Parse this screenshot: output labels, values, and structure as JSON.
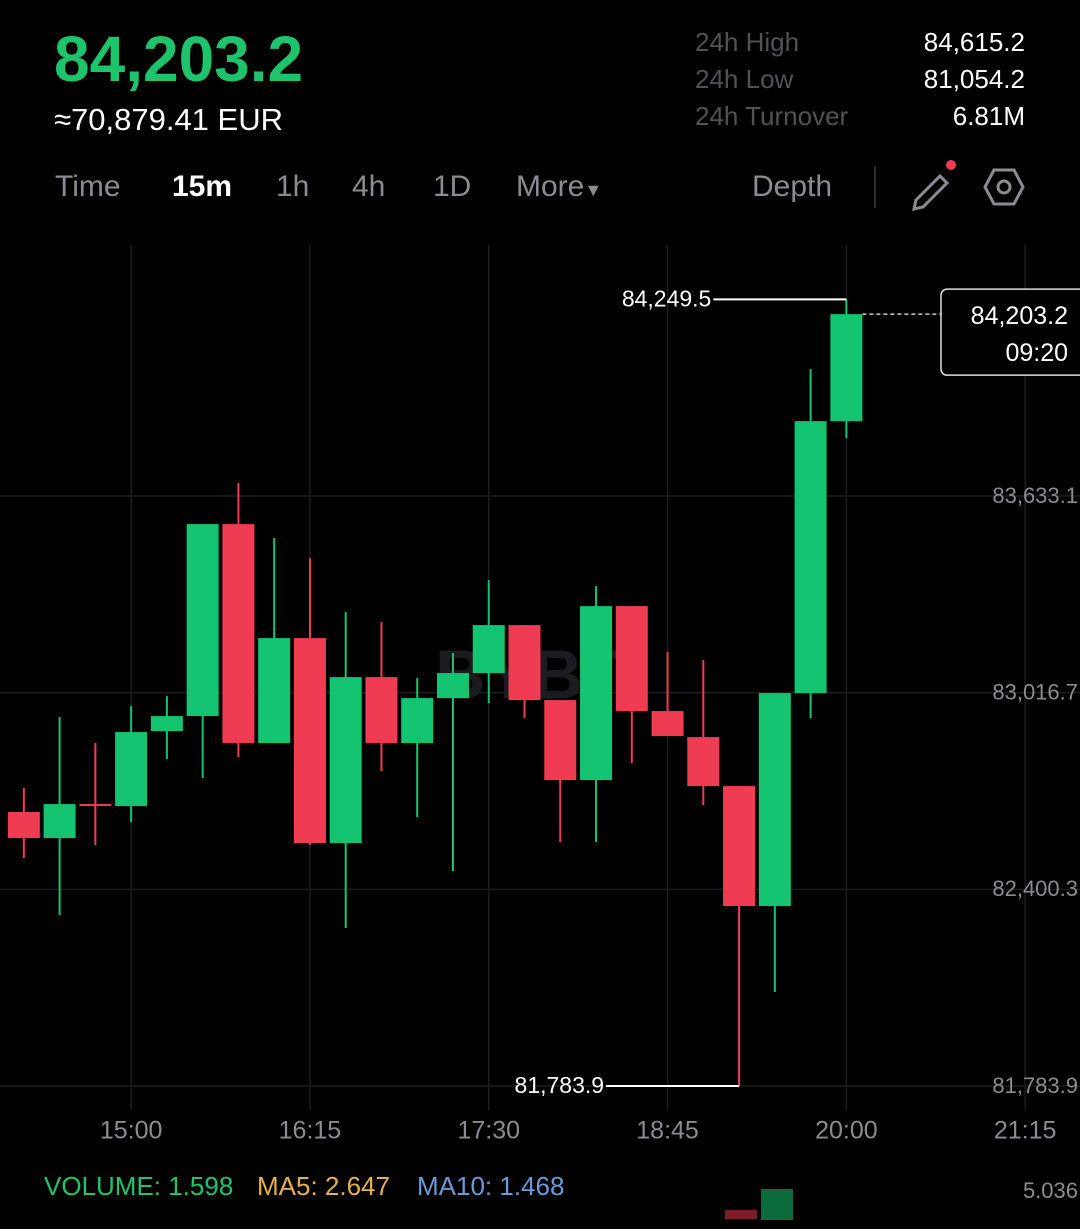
{
  "header": {
    "price": "84,203.2",
    "fiat": "≈70,879.41 EUR",
    "stats": [
      {
        "label": "24h High",
        "value": "84,615.2"
      },
      {
        "label": "24h Low",
        "value": "81,054.2"
      },
      {
        "label": "24h Turnover",
        "value": "6.81M"
      }
    ]
  },
  "tabs": [
    "Time",
    "15m",
    "1h",
    "4h",
    "1D",
    "More"
  ],
  "active_tab": "15m",
  "depth": "Depth",
  "chart_data": {
    "type": "candlestick",
    "watermark": "BYBIT",
    "up_color": "#14c470",
    "down_color": "#f03c52",
    "grid": true,
    "x": [
      855,
      870,
      885,
      900,
      915,
      930,
      945,
      960,
      975,
      990,
      1005,
      1020,
      1035,
      1050,
      1065,
      1080,
      1095,
      1110,
      1125,
      1140,
      1155,
      1170,
      1185,
      1200
    ],
    "open": [
      82642.6,
      82561.1,
      82667.6,
      82661.4,
      82896.4,
      82943.4,
      83545.1,
      82858.8,
      83187.8,
      82545.4,
      83065.6,
      82858.8,
      82999.8,
      83078.2,
      83228.6,
      82993.5,
      82742.8,
      83288.1,
      82959.1,
      82877.6,
      82724.0,
      82348.0,
      83015.5,
      83867.9
    ],
    "high": [
      82717.8,
      82940.3,
      82858.8,
      82974.7,
      83006.1,
      83545.1,
      83673.6,
      83501.2,
      83438.5,
      83269.3,
      83238.0,
      83062.5,
      83140.8,
      83369.6,
      83228.6,
      82993.5,
      83350.8,
      83288.1,
      83144.0,
      83118.9,
      82724.0,
      83015.5,
      84030.8,
      84249.5
    ],
    "low": [
      82498.4,
      82319.8,
      82539.1,
      82611.2,
      82808.7,
      82749.1,
      82814.9,
      82858.8,
      82539.1,
      82279.0,
      82771.0,
      82626.9,
      82457.7,
      82984.1,
      82937.1,
      82548.5,
      82548.5,
      82796.1,
      82880.7,
      82664.5,
      81783.9,
      82078.5,
      82937.1,
      83814.6
    ],
    "close": [
      82561.1,
      82667.6,
      82661.4,
      82893.3,
      82943.4,
      83545.1,
      82858.8,
      83187.8,
      82545.4,
      83065.6,
      82858.8,
      82999.8,
      83078.2,
      83228.6,
      82993.5,
      82742.8,
      83288.1,
      82959.1,
      82880.7,
      82724.0,
      82348.0,
      83015.5,
      83867.9,
      84203.2
    ],
    "xlim": [
      845,
      1298
    ],
    "ylim": [
      81740,
      84420
    ],
    "xticks": [
      {
        "value": 900,
        "label": "15:00"
      },
      {
        "value": 975,
        "label": "16:15"
      },
      {
        "value": 1050,
        "label": "17:30"
      },
      {
        "value": 1125,
        "label": "18:45"
      },
      {
        "value": 1200,
        "label": "20:00"
      },
      {
        "value": 1275,
        "label": "21:15"
      }
    ],
    "yticks": [
      {
        "value": 83633.1,
        "label": "83,633.1"
      },
      {
        "value": 83016.7,
        "label": "83,016.7"
      },
      {
        "value": 82400.3,
        "label": "82,400.3"
      },
      {
        "value": 81783.9,
        "label": "81,783.9"
      }
    ],
    "high_marker": {
      "value": 84249.5,
      "label": "84,249.5"
    },
    "low_marker": {
      "value": 81783.9,
      "label": "81,783.9"
    },
    "last_price": {
      "value": 84203.2,
      "label": "84,203.2",
      "countdown": "09:20"
    },
    "volume": {
      "volume": "VOLUME: 1.598",
      "ma5": "MA5: 2.647",
      "ma10": "MA10: 1.468",
      "axis_max": "5.036"
    }
  }
}
